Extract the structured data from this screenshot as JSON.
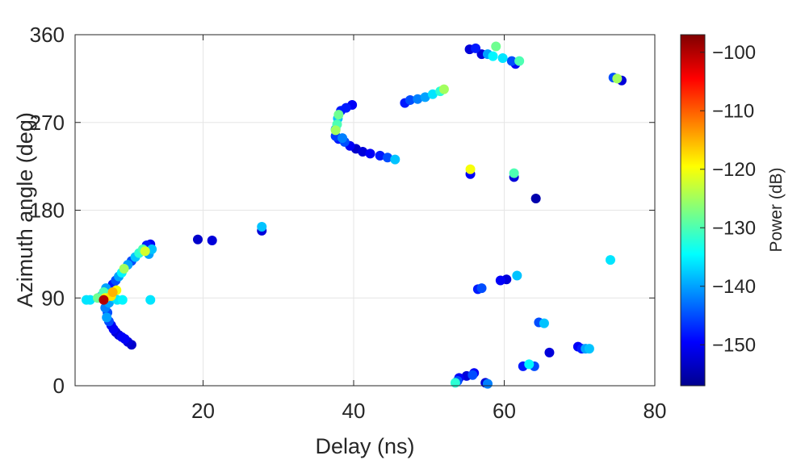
{
  "chart_data": {
    "type": "scatter",
    "title": "",
    "xlabel": "Delay (ns)",
    "ylabel": "Azimuth angle (deg)",
    "xlim": [
      3,
      80
    ],
    "ylim": [
      0,
      360
    ],
    "xticks": [
      20,
      40,
      60,
      80
    ],
    "yticks": [
      0,
      90,
      180,
      270,
      360
    ],
    "grid": true,
    "colorbar": {
      "label": "Power (dB)",
      "range": [
        -157,
        -97
      ],
      "ticks": [
        -100,
        -110,
        -120,
        -130,
        -140,
        -150
      ],
      "colormap": "jet"
    },
    "points": [
      [
        4.5,
        88,
        -136
      ],
      [
        5.0,
        88,
        -136
      ],
      [
        6.0,
        90,
        -128
      ],
      [
        6.5,
        92,
        -140
      ],
      [
        6.8,
        88,
        -100
      ],
      [
        7.0,
        90,
        -120
      ],
      [
        7.2,
        94,
        -135
      ],
      [
        7.5,
        85,
        -140
      ],
      [
        7.8,
        92,
        -118
      ],
      [
        7.0,
        80,
        -142
      ],
      [
        7.3,
        75,
        -145
      ],
      [
        7.2,
        70,
        -140
      ],
      [
        7.5,
        66,
        -145
      ],
      [
        7.8,
        62,
        -150
      ],
      [
        8.1,
        58,
        -150
      ],
      [
        8.4,
        55,
        -152
      ],
      [
        8.8,
        52,
        -152
      ],
      [
        9.2,
        50,
        -150
      ],
      [
        9.6,
        48,
        -150
      ],
      [
        10.0,
        45,
        -152
      ],
      [
        10.5,
        42,
        -153
      ],
      [
        6.8,
        96,
        -130
      ],
      [
        7.1,
        100,
        -140
      ],
      [
        8.0,
        96,
        -115
      ],
      [
        8.5,
        98,
        -120
      ],
      [
        8.2,
        90,
        -138
      ],
      [
        8.6,
        88,
        -136
      ],
      [
        9.3,
        88,
        -135
      ],
      [
        13.0,
        88,
        -136
      ],
      [
        8.0,
        104,
        -148
      ],
      [
        8.4,
        108,
        -145
      ],
      [
        8.8,
        112,
        -140
      ],
      [
        9.2,
        116,
        -135
      ],
      [
        9.5,
        120,
        -125
      ],
      [
        10.0,
        124,
        -140
      ],
      [
        10.5,
        128,
        -145
      ],
      [
        11.0,
        132,
        -138
      ],
      [
        11.5,
        136,
        -132
      ],
      [
        12.0,
        140,
        -130
      ],
      [
        12.5,
        144,
        -148
      ],
      [
        12.3,
        138,
        -122
      ],
      [
        12.8,
        135,
        -140
      ],
      [
        13.2,
        140,
        -138
      ],
      [
        13.0,
        145,
        -150
      ],
      [
        19.3,
        150,
        -153
      ],
      [
        21.2,
        149,
        -152
      ],
      [
        27.8,
        163,
        -138
      ],
      [
        27.8,
        159,
        -152
      ],
      [
        37.6,
        263,
        -140
      ],
      [
        37.8,
        268,
        -130
      ],
      [
        37.9,
        274,
        -138
      ],
      [
        38.0,
        278,
        -128
      ],
      [
        38.3,
        282,
        -148
      ],
      [
        39.0,
        285,
        -148
      ],
      [
        39.8,
        288,
        -150
      ],
      [
        37.6,
        256,
        -146
      ],
      [
        38.0,
        253,
        -148
      ],
      [
        38.8,
        250,
        -145
      ],
      [
        39.5,
        246,
        -150
      ],
      [
        40.3,
        243,
        -153
      ],
      [
        41.2,
        240,
        -152
      ],
      [
        42.2,
        238,
        -150
      ],
      [
        43.5,
        236,
        -148
      ],
      [
        44.5,
        234,
        -145
      ],
      [
        45.5,
        232,
        -138
      ],
      [
        37.6,
        262,
        -125
      ],
      [
        38.5,
        254,
        -142
      ],
      [
        46.8,
        290,
        -148
      ],
      [
        47.5,
        293,
        -145
      ],
      [
        48.5,
        294,
        -142
      ],
      [
        49.5,
        296,
        -140
      ],
      [
        50.5,
        299,
        -136
      ],
      [
        51.5,
        302,
        -132
      ],
      [
        52.0,
        304,
        -125
      ],
      [
        55.5,
        222,
        -120
      ],
      [
        55.5,
        217,
        -150
      ],
      [
        61.3,
        218,
        -130
      ],
      [
        61.3,
        214,
        -152
      ],
      [
        64.2,
        192,
        -155
      ],
      [
        55.4,
        345,
        -152
      ],
      [
        56.2,
        346,
        -148
      ],
      [
        57.0,
        340,
        -152
      ],
      [
        57.8,
        340,
        -140
      ],
      [
        58.5,
        338,
        -135
      ],
      [
        58.9,
        348,
        -128
      ],
      [
        59.8,
        336,
        -136
      ],
      [
        61.0,
        333,
        -145
      ],
      [
        62.0,
        333,
        -130
      ],
      [
        61.5,
        330,
        -150
      ],
      [
        75.0,
        315,
        -125
      ],
      [
        74.5,
        316,
        -145
      ],
      [
        75.6,
        313,
        -152
      ],
      [
        56.5,
        99,
        -148
      ],
      [
        57.0,
        100,
        -145
      ],
      [
        59.5,
        108,
        -150
      ],
      [
        60.3,
        109,
        -152
      ],
      [
        61.7,
        113,
        -138
      ],
      [
        74.1,
        129,
        -136
      ],
      [
        64.6,
        65,
        -145
      ],
      [
        65.3,
        64,
        -138
      ],
      [
        69.8,
        40,
        -150
      ],
      [
        70.3,
        38,
        -148
      ],
      [
        70.8,
        38,
        -140
      ],
      [
        71.3,
        38,
        -138
      ],
      [
        62.5,
        20,
        -148
      ],
      [
        63.3,
        22,
        -135
      ],
      [
        64.0,
        20,
        -145
      ],
      [
        66.0,
        34,
        -152
      ],
      [
        53.5,
        3,
        -132
      ],
      [
        54.0,
        8,
        -150
      ],
      [
        55.0,
        10,
        -152
      ],
      [
        56.0,
        13,
        -150
      ],
      [
        57.5,
        3,
        -152
      ],
      [
        57.8,
        2,
        -142
      ],
      [
        53.8,
        5,
        -145
      ],
      [
        55.8,
        11,
        -145
      ]
    ]
  }
}
